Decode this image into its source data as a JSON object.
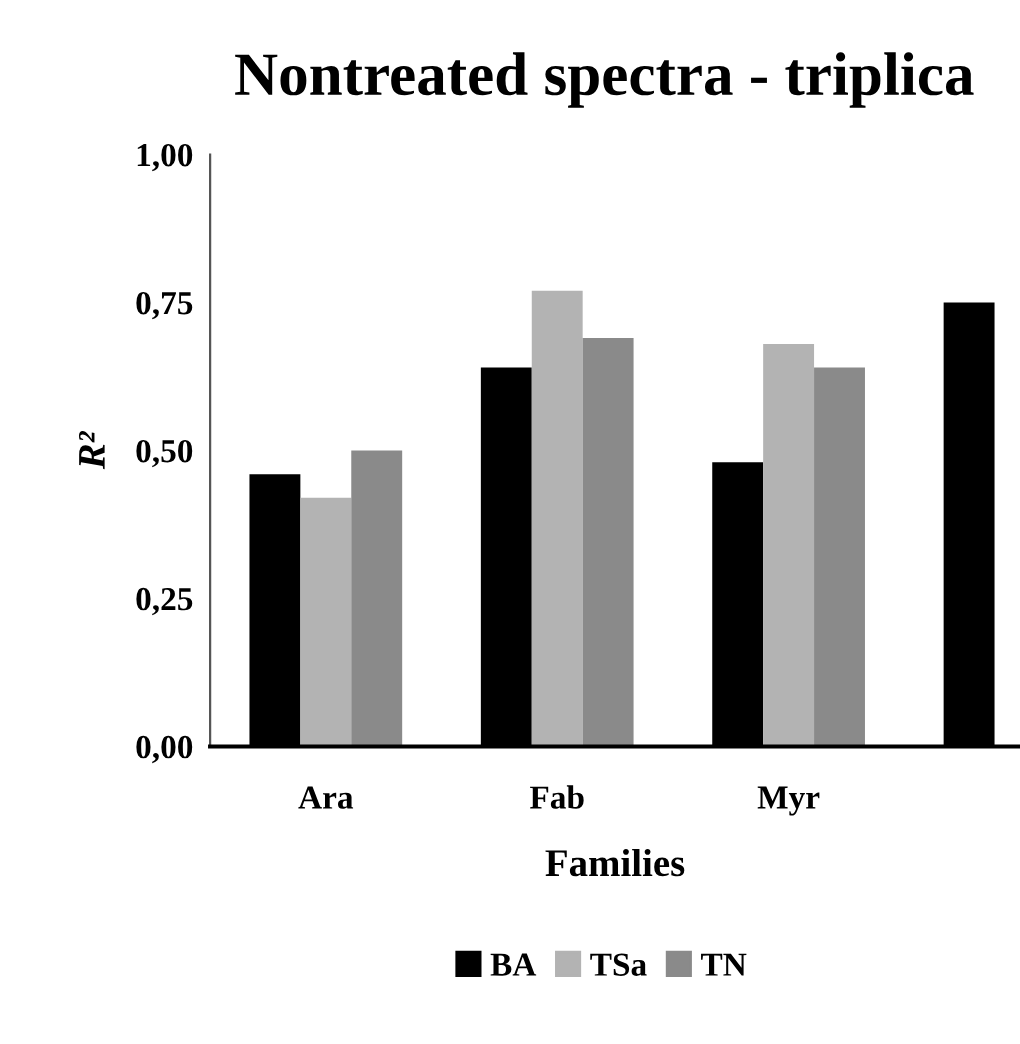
{
  "chart_data": {
    "type": "bar",
    "title": "Nontreated spectra - triplica",
    "xlabel": "Families",
    "ylabel": "R²",
    "categories": [
      "Ara",
      "Fab",
      "Myr",
      null
    ],
    "series": [
      {
        "name": "BA",
        "color": "#000000",
        "values": [
          0.46,
          0.64,
          0.48,
          0.75
        ]
      },
      {
        "name": "TSa",
        "color": "#b3b3b3",
        "values": [
          0.42,
          0.77,
          0.68,
          null
        ]
      },
      {
        "name": "TN",
        "color": "#8a8a8a",
        "values": [
          0.5,
          0.69,
          0.64,
          null
        ]
      }
    ],
    "ylim": [
      0,
      1
    ],
    "yticks": [
      {
        "value": 0,
        "label": "0,00"
      },
      {
        "value": 0.25,
        "label": "0,25"
      },
      {
        "value": 0.5,
        "label": "0,50"
      },
      {
        "value": 0.75,
        "label": "0,75"
      },
      {
        "value": 1,
        "label": "1,00"
      }
    ],
    "grid": false,
    "legend": "bottom"
  }
}
